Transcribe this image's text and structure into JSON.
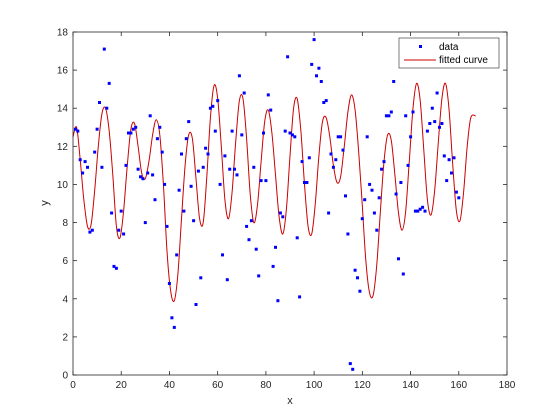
{
  "chart_data": {
    "type": "scatter",
    "xlabel": "x",
    "ylabel": "y",
    "xlim": [
      0,
      180
    ],
    "ylim": [
      0,
      18
    ],
    "xticks": [
      0,
      20,
      40,
      60,
      80,
      100,
      120,
      140,
      160,
      180
    ],
    "yticks": [
      0,
      2,
      4,
      6,
      8,
      10,
      12,
      14,
      16,
      18
    ],
    "grid": false,
    "legend_position": "top-right",
    "legend": [
      "data",
      "fitted curve"
    ],
    "colors": {
      "data": "#0000ff",
      "curve": "#cc0000"
    },
    "series": [
      {
        "name": "data",
        "type": "scatter",
        "points": [
          [
            1,
            12.9
          ],
          [
            2,
            12.8
          ],
          [
            3,
            11.3
          ],
          [
            4,
            10.6
          ],
          [
            5,
            11.2
          ],
          [
            6,
            10.9
          ],
          [
            7,
            7.5
          ],
          [
            8,
            7.6
          ],
          [
            9,
            11.7
          ],
          [
            10,
            12.9
          ],
          [
            11,
            14.3
          ],
          [
            12,
            10.9
          ],
          [
            13,
            17.1
          ],
          [
            14,
            14.0
          ],
          [
            15,
            15.3
          ],
          [
            16,
            8.5
          ],
          [
            17,
            5.7
          ],
          [
            18,
            5.6
          ],
          [
            19,
            7.6
          ],
          [
            20,
            8.6
          ],
          [
            21,
            7.4
          ],
          [
            22,
            11.0
          ],
          [
            23,
            12.7
          ],
          [
            24,
            12.7
          ],
          [
            25,
            12.9
          ],
          [
            26,
            13.0
          ],
          [
            27,
            10.8
          ],
          [
            28,
            10.4
          ],
          [
            29,
            10.3
          ],
          [
            30,
            8.0
          ],
          [
            31,
            10.6
          ],
          [
            32,
            13.6
          ],
          [
            33,
            10.5
          ],
          [
            34,
            9.2
          ],
          [
            35,
            12.4
          ],
          [
            36,
            13.0
          ],
          [
            37,
            11.7
          ],
          [
            38,
            10.0
          ],
          [
            39,
            7.8
          ],
          [
            40,
            4.8
          ],
          [
            41,
            3.0
          ],
          [
            42,
            2.5
          ],
          [
            43,
            6.3
          ],
          [
            44,
            9.7
          ],
          [
            45,
            11.6
          ],
          [
            46,
            8.6
          ],
          [
            47,
            12.4
          ],
          [
            48,
            13.3
          ],
          [
            49,
            9.9
          ],
          [
            50,
            8.1
          ],
          [
            51,
            3.7
          ],
          [
            52,
            10.7
          ],
          [
            53,
            5.1
          ],
          [
            54,
            10.9
          ],
          [
            55,
            11.9
          ],
          [
            56,
            11.6
          ],
          [
            57,
            14.0
          ],
          [
            58,
            14.1
          ],
          [
            59,
            12.8
          ],
          [
            60,
            14.4
          ],
          [
            61,
            10.0
          ],
          [
            62,
            6.3
          ],
          [
            63,
            11.5
          ],
          [
            64,
            5.0
          ],
          [
            65,
            10.8
          ],
          [
            66,
            12.8
          ],
          [
            67,
            10.8
          ],
          [
            68,
            10.5
          ],
          [
            69,
            15.7
          ],
          [
            70,
            12.6
          ],
          [
            71,
            14.8
          ],
          [
            72,
            7.8
          ],
          [
            73,
            7.1
          ],
          [
            74,
            8.1
          ],
          [
            75,
            10.9
          ],
          [
            76,
            6.6
          ],
          [
            77,
            5.2
          ],
          [
            78,
            10.2
          ],
          [
            79,
            12.7
          ],
          [
            80,
            10.2
          ],
          [
            81,
            14.7
          ],
          [
            82,
            13.9
          ],
          [
            83,
            5.7
          ],
          [
            84,
            6.7
          ],
          [
            85,
            3.9
          ],
          [
            86,
            8.5
          ],
          [
            87,
            8.3
          ],
          [
            88,
            12.8
          ],
          [
            89,
            16.7
          ],
          [
            90,
            12.7
          ],
          [
            91,
            12.6
          ],
          [
            92,
            12.5
          ],
          [
            93,
            7.2
          ],
          [
            94,
            4.1
          ],
          [
            95,
            11.2
          ],
          [
            96,
            10.1
          ],
          [
            97,
            10.1
          ],
          [
            98,
            11.4
          ],
          [
            99,
            16.3
          ],
          [
            100,
            17.6
          ],
          [
            101,
            15.7
          ],
          [
            102,
            16.1
          ],
          [
            103,
            15.4
          ],
          [
            104,
            14.3
          ],
          [
            105,
            14.4
          ],
          [
            106,
            8.5
          ],
          [
            107,
            11.6
          ],
          [
            108,
            10.9
          ],
          [
            109,
            11.3
          ],
          [
            110,
            12.5
          ],
          [
            111,
            12.5
          ],
          [
            112,
            11.8
          ],
          [
            113,
            9.4
          ],
          [
            114,
            7.4
          ],
          [
            115,
            0.6
          ],
          [
            116,
            0.3
          ],
          [
            117,
            5.5
          ],
          [
            118,
            5.1
          ],
          [
            119,
            4.4
          ],
          [
            120,
            8.2
          ],
          [
            121,
            9.2
          ],
          [
            122,
            12.5
          ],
          [
            123,
            10.0
          ],
          [
            124,
            9.7
          ],
          [
            125,
            8.5
          ],
          [
            126,
            7.6
          ],
          [
            127,
            9.3
          ],
          [
            128,
            10.8
          ],
          [
            129,
            11.2
          ],
          [
            130,
            13.6
          ],
          [
            131,
            13.6
          ],
          [
            132,
            13.8
          ],
          [
            133,
            15.4
          ],
          [
            134,
            9.5
          ],
          [
            135,
            6.1
          ],
          [
            136,
            10.1
          ],
          [
            137,
            5.3
          ],
          [
            138,
            13.6
          ],
          [
            139,
            11.0
          ],
          [
            140,
            12.5
          ],
          [
            141,
            13.8
          ],
          [
            142,
            8.6
          ],
          [
            143,
            8.6
          ],
          [
            144,
            8.7
          ],
          [
            145,
            8.8
          ],
          [
            146,
            8.6
          ],
          [
            147,
            12.8
          ],
          [
            148,
            13.2
          ],
          [
            149,
            14.0
          ],
          [
            150,
            13.3
          ],
          [
            151,
            14.8
          ],
          [
            152,
            13.0
          ],
          [
            153,
            13.2
          ],
          [
            154,
            11.5
          ],
          [
            155,
            10.2
          ],
          [
            156,
            11.3
          ],
          [
            157,
            10.6
          ],
          [
            158,
            11.4
          ],
          [
            159,
            9.6
          ],
          [
            160,
            9.3
          ]
        ]
      },
      {
        "name": "fitted curve",
        "type": "line",
        "points": [
          [
            0.0,
            12.5
          ],
          [
            1.5,
            13.0
          ],
          [
            3.0,
            11.3
          ],
          [
            4.5,
            9.2
          ],
          [
            6.0,
            7.8
          ],
          [
            7.5,
            7.9
          ],
          [
            9.0,
            9.7
          ],
          [
            10.5,
            12.0
          ],
          [
            12.0,
            13.7
          ],
          [
            13.5,
            14.0
          ],
          [
            15.0,
            12.8
          ],
          [
            16.5,
            10.5
          ],
          [
            18.0,
            7.8
          ],
          [
            19.5,
            7.2
          ],
          [
            21.0,
            8.6
          ],
          [
            22.5,
            11.0
          ],
          [
            24.0,
            12.9
          ],
          [
            25.5,
            13.2
          ],
          [
            27.0,
            12.0
          ],
          [
            28.5,
            10.6
          ],
          [
            30.0,
            10.3
          ],
          [
            31.5,
            11.2
          ],
          [
            33.0,
            12.6
          ],
          [
            34.5,
            13.4
          ],
          [
            36.0,
            12.6
          ],
          [
            37.5,
            10.0
          ],
          [
            39.0,
            6.5
          ],
          [
            40.5,
            4.4
          ],
          [
            42.0,
            3.9
          ],
          [
            43.5,
            5.3
          ],
          [
            45.0,
            8.2
          ],
          [
            46.5,
            11.0
          ],
          [
            48.0,
            12.6
          ],
          [
            49.5,
            12.4
          ],
          [
            51.0,
            10.3
          ],
          [
            52.5,
            8.2
          ],
          [
            54.0,
            8.0
          ],
          [
            55.5,
            10.4
          ],
          [
            57.0,
            13.5
          ],
          [
            58.5,
            15.2
          ],
          [
            60.0,
            14.5
          ],
          [
            61.5,
            12.0
          ],
          [
            63.0,
            9.2
          ],
          [
            64.5,
            8.2
          ],
          [
            66.0,
            9.6
          ],
          [
            67.5,
            12.3
          ],
          [
            69.0,
            14.4
          ],
          [
            70.5,
            14.5
          ],
          [
            72.0,
            12.4
          ],
          [
            73.5,
            9.5
          ],
          [
            75.0,
            8.0
          ],
          [
            76.5,
            8.9
          ],
          [
            78.0,
            11.2
          ],
          [
            79.5,
            13.3
          ],
          [
            81.0,
            13.9
          ],
          [
            82.5,
            12.7
          ],
          [
            84.0,
            10.5
          ],
          [
            85.5,
            8.3
          ],
          [
            87.0,
            7.4
          ],
          [
            88.5,
            8.7
          ],
          [
            90.0,
            11.5
          ],
          [
            91.5,
            14.0
          ],
          [
            93.0,
            14.5
          ],
          [
            94.5,
            12.8
          ],
          [
            96.0,
            10.0
          ],
          [
            97.5,
            7.8
          ],
          [
            99.0,
            7.4
          ],
          [
            100.5,
            9.0
          ],
          [
            102.0,
            11.5
          ],
          [
            103.5,
            13.3
          ],
          [
            105.0,
            13.5
          ],
          [
            106.5,
            12.5
          ],
          [
            108.0,
            11.0
          ],
          [
            109.5,
            10.1
          ],
          [
            111.0,
            10.4
          ],
          [
            112.5,
            12.0
          ],
          [
            114.0,
            13.8
          ],
          [
            115.5,
            14.7
          ],
          [
            117.0,
            13.9
          ],
          [
            118.5,
            11.7
          ],
          [
            120.0,
            8.9
          ],
          [
            121.5,
            5.9
          ],
          [
            123.0,
            4.3
          ],
          [
            124.5,
            4.2
          ],
          [
            126.0,
            5.8
          ],
          [
            127.5,
            8.6
          ],
          [
            129.0,
            11.2
          ],
          [
            130.5,
            12.6
          ],
          [
            132.0,
            12.3
          ],
          [
            133.5,
            10.5
          ],
          [
            135.0,
            8.5
          ],
          [
            136.5,
            7.6
          ],
          [
            138.0,
            8.6
          ],
          [
            139.5,
            11.3
          ],
          [
            141.0,
            14.0
          ],
          [
            142.5,
            15.3
          ],
          [
            144.0,
            14.4
          ],
          [
            145.5,
            11.8
          ],
          [
            147.0,
            9.2
          ],
          [
            148.5,
            8.4
          ],
          [
            150.0,
            9.7
          ],
          [
            151.5,
            12.2
          ],
          [
            153.0,
            14.5
          ],
          [
            154.5,
            15.3
          ],
          [
            156.0,
            13.9
          ],
          [
            157.5,
            11.0
          ],
          [
            159.0,
            8.6
          ],
          [
            160.5,
            8.1
          ],
          [
            162.0,
            9.6
          ],
          [
            163.5,
            12.0
          ],
          [
            165.0,
            13.5
          ],
          [
            167.0,
            13.6
          ]
        ]
      }
    ]
  }
}
